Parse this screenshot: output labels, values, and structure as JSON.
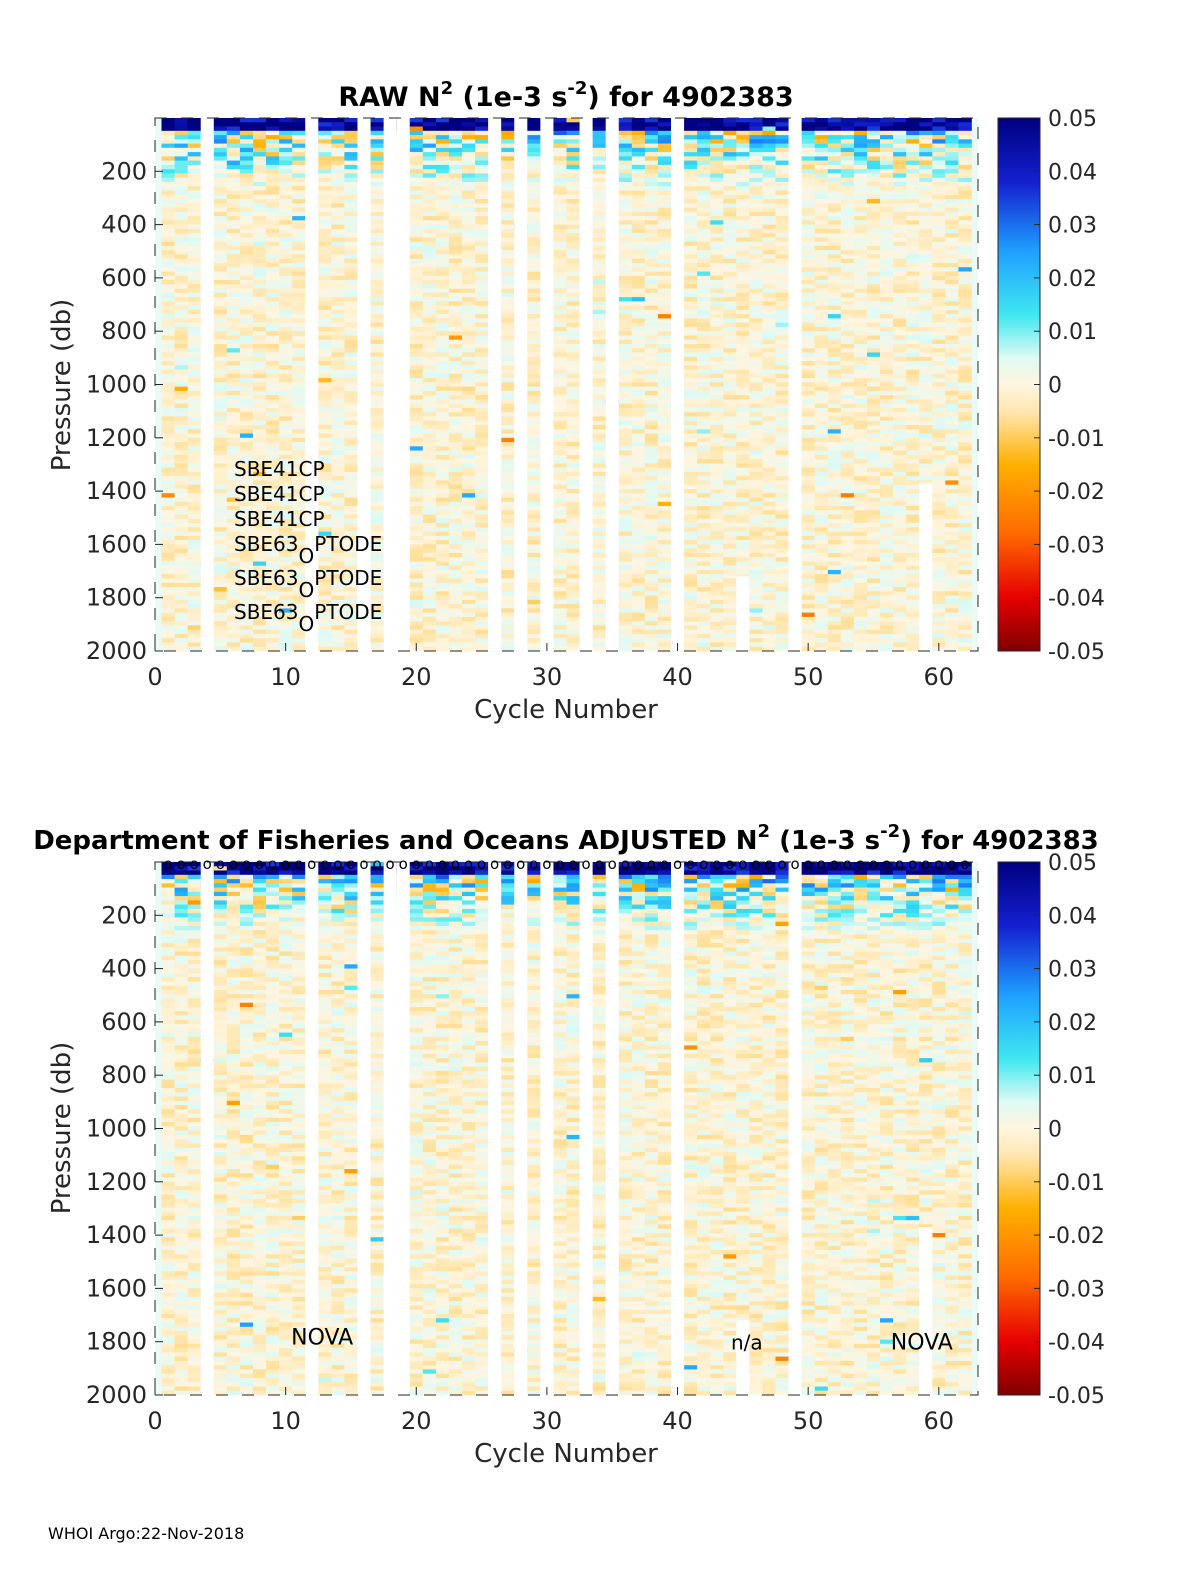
{
  "footer": "WHOI Argo:22-Nov-2018",
  "chart_data": [
    {
      "type": "heatmap",
      "title_prefix": "RAW N",
      "title_sup1": "2",
      "title_mid": " (1e-3 s",
      "title_sup2": "-2",
      "title_suffix": ") for 4902383",
      "xlabel": "Cycle Number",
      "ylabel": "Pressure (db)",
      "xlim": [
        0,
        63
      ],
      "ylim": [
        0,
        2000
      ],
      "xticks": [
        "0",
        "10",
        "20",
        "30",
        "40",
        "50",
        "60"
      ],
      "yticks": [
        "200",
        "400",
        "600",
        "800",
        "1000",
        "1200",
        "1400",
        "1600",
        "1800",
        "2000"
      ],
      "clim": [
        -0.05,
        0.05
      ],
      "colorbar_ticks": [
        "0.05",
        "0.04",
        "0.03",
        "0.02",
        "0.01",
        "0",
        "-0.01",
        "-0.02",
        "-0.03",
        "-0.04",
        "-0.05"
      ],
      "missing_cycles": [
        4,
        12,
        16,
        18,
        19,
        26,
        28,
        30,
        33,
        35,
        40,
        49
      ],
      "partial_gaps": [
        {
          "cycle": 45,
          "from_pressure": 1720
        }
      ],
      "short_profiles": [
        {
          "cycle": 59,
          "max_pressure": 1370
        }
      ],
      "sensor_labels": [
        {
          "text": "SBE41CP"
        },
        {
          "text": "SBE41CP"
        },
        {
          "text": "SBE41CP"
        },
        {
          "text": "SBE63",
          "sub": "O",
          "rest": "PTODE"
        },
        {
          "text": "SBE63",
          "sub": "O",
          "rest": "PTODE"
        },
        {
          "text": "SBE63",
          "sub": "O",
          "rest": "PTODE"
        }
      ],
      "annotations": []
    },
    {
      "type": "heatmap",
      "title_prefix": "Department of Fisheries and Oceans  ADJUSTED N",
      "title_sup1": "2",
      "title_mid": " (1e-3 s",
      "title_sup2": "-2",
      "title_suffix": ") for 4902383",
      "xlabel": "Cycle Number",
      "ylabel": "Pressure (db)",
      "xlim": [
        0,
        63
      ],
      "ylim": [
        0,
        2000
      ],
      "xticks": [
        "0",
        "10",
        "20",
        "30",
        "40",
        "50",
        "60"
      ],
      "yticks": [
        "200",
        "400",
        "600",
        "800",
        "1000",
        "1200",
        "1400",
        "1600",
        "1800",
        "2000"
      ],
      "clim": [
        -0.05,
        0.05
      ],
      "colorbar_ticks": [
        "0.05",
        "0.04",
        "0.03",
        "0.02",
        "0.01",
        "0",
        "-0.01",
        "-0.02",
        "-0.03",
        "-0.04",
        "-0.05"
      ],
      "missing_cycles": [
        4,
        12,
        16,
        18,
        19,
        26,
        28,
        30,
        33,
        35,
        40,
        49
      ],
      "partial_gaps": [
        {
          "cycle": 45,
          "from_pressure": 1720
        }
      ],
      "short_profiles": [
        {
          "cycle": 59,
          "max_pressure": 1370
        }
      ],
      "qc_marker": "o",
      "sensor_labels": [],
      "annotations": [
        {
          "text": "NOVA",
          "cycle": 12.8,
          "pressure": 1780
        },
        {
          "text": "n/a",
          "cycle": 45.3,
          "pressure": 1800
        },
        {
          "text": "NOVA",
          "cycle": 58.7,
          "pressure": 1800
        }
      ]
    }
  ]
}
